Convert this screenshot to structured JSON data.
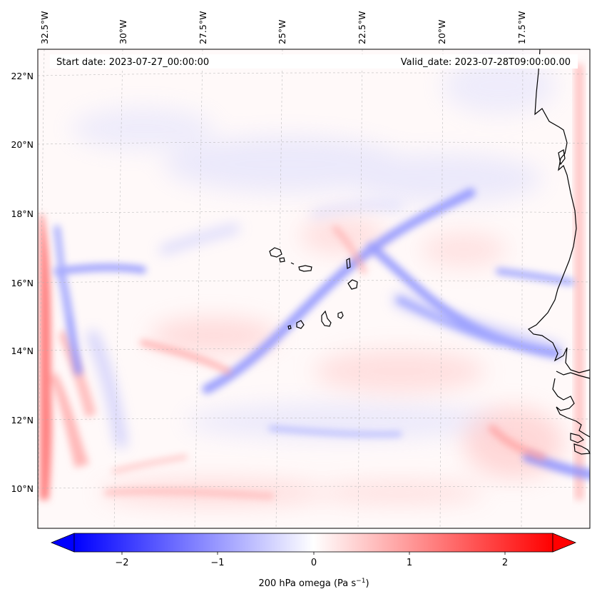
{
  "header": {
    "start_date": "Start date: 2023-07-27_00:00:00",
    "valid_date": "Valid_date: 2023-07-28T09:00:00.00"
  },
  "longitude_labels": [
    "32.5°W",
    "30°W",
    "27.5°W",
    "25°W",
    "22.5°W",
    "20°W",
    "17.5°W"
  ],
  "latitude_labels": [
    "22°N",
    "20°N",
    "18°N",
    "16°N",
    "14°N",
    "12°N",
    "10°N"
  ],
  "colorbar": {
    "ticks": [
      "−2",
      "−1",
      "0",
      "1",
      "2"
    ],
    "label": "200 hPa omega (Pa s",
    "label_exp": "−1",
    "label_close": ")",
    "min": -2.5,
    "max": 2.5,
    "colormap": "bwr",
    "extend": "both"
  },
  "colors": {
    "negative": "#0000ff",
    "zero": "#ffffff",
    "positive": "#ff0000",
    "coastline": "#000000",
    "gridline": "#b0b0b0"
  }
}
